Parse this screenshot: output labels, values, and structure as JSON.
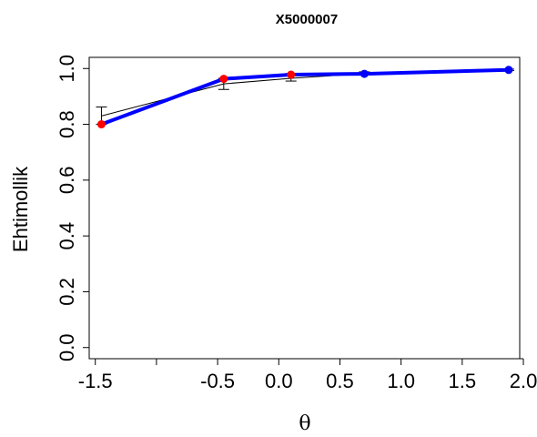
{
  "chart_data": {
    "type": "line",
    "title": "X5000007",
    "xlabel": "θ",
    "ylabel": "Ehtimollik",
    "xlim": [
      -1.55,
      1.97
    ],
    "ylim": [
      -0.04,
      1.04
    ],
    "x_ticks": [
      -1.5,
      -1.0,
      -0.5,
      0.0,
      0.5,
      1.0,
      1.5,
      2.0
    ],
    "x_tick_labels": [
      "-1.5",
      "",
      "-0.5",
      "0.0",
      "0.5",
      "1.0",
      "1.5",
      "2.0"
    ],
    "y_ticks": [
      0.0,
      0.2,
      0.4,
      0.6,
      0.8,
      1.0
    ],
    "y_tick_labels": [
      "0.0",
      "0.2",
      "0.4",
      "0.6",
      "0.8",
      "1.0"
    ],
    "grid": false,
    "series": [
      {
        "role": "expected",
        "color": "#000000",
        "x": [
          -1.45,
          -0.45,
          0.1,
          0.7,
          1.88
        ],
        "y": [
          0.83,
          0.945,
          0.965,
          0.982,
          0.995
        ],
        "error_low": [
          0.8,
          0.925,
          0.955,
          0.978,
          0.993
        ],
        "error_high": [
          0.862,
          0.965,
          0.982,
          0.988,
          0.998
        ]
      },
      {
        "role": "observed",
        "color": "#0000ff",
        "x": [
          -1.45,
          -0.45,
          0.1,
          0.7,
          1.88
        ],
        "y": [
          0.8,
          0.963,
          0.978,
          0.981,
          0.995
        ],
        "point_colors": [
          "#ff0000",
          "#ff0000",
          "#ff0000",
          "#0000ff",
          "#0000ff"
        ]
      }
    ]
  }
}
